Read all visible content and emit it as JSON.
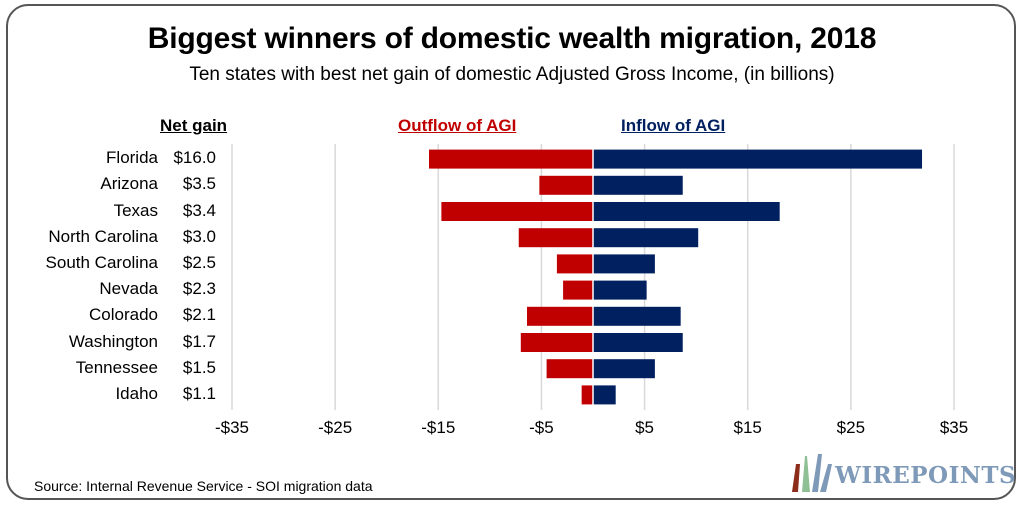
{
  "title": "Biggest winners of domestic wealth migration, 2018",
  "subtitle": "Ten states with best net gain of domestic Adjusted Gross Income, (in billions)",
  "column_headers": {
    "net_gain": "Net gain",
    "outflow": "Outflow of AGI",
    "inflow": "Inflow of AGI"
  },
  "source": "Source: Internal Revenue Service - SOI migration data",
  "logo": {
    "text": "WIREPOINTS"
  },
  "colors": {
    "outflow": "#c00000",
    "inflow": "#002060",
    "grid": "#d9d9d9"
  },
  "chart_data": {
    "type": "bar",
    "orientation": "horizontal-diverging",
    "title": "Biggest winners of domestic wealth migration, 2018",
    "subtitle": "Ten states with best net gain of domestic Adjusted Gross Income, (in billions)",
    "categories": [
      "Florida",
      "Arizona",
      "Texas",
      "North Carolina",
      "South Carolina",
      "Nevada",
      "Colorado",
      "Washington",
      "Tennessee",
      "Idaho"
    ],
    "net_gain_labels": [
      "$16.0",
      "$3.5",
      "$3.4",
      "$3.0",
      "$2.5",
      "$2.3",
      "$2.1",
      "$1.7",
      "$1.5",
      "$1.1"
    ],
    "net_gain": [
      16.0,
      3.5,
      3.4,
      3.0,
      2.5,
      2.3,
      2.1,
      1.7,
      1.5,
      1.1
    ],
    "series": [
      {
        "name": "Outflow of AGI",
        "color": "#c00000",
        "values": [
          -15.9,
          -5.2,
          -14.7,
          -7.2,
          -3.5,
          -2.9,
          -6.4,
          -7.0,
          -4.5,
          -1.1
        ]
      },
      {
        "name": "Inflow of AGI",
        "color": "#002060",
        "values": [
          31.9,
          8.7,
          18.1,
          10.2,
          6.0,
          5.2,
          8.5,
          8.7,
          6.0,
          2.2
        ]
      }
    ],
    "xlim": [
      -35,
      35
    ],
    "xticks": [
      -35,
      -25,
      -15,
      -5,
      5,
      15,
      25,
      35
    ],
    "xtick_labels": [
      "-$35",
      "-$25",
      "-$15",
      "-$5",
      "$5",
      "$15",
      "$25",
      "$35"
    ],
    "xlabel": "",
    "ylabel": "",
    "grid": true,
    "legend": "top (column headers)"
  }
}
